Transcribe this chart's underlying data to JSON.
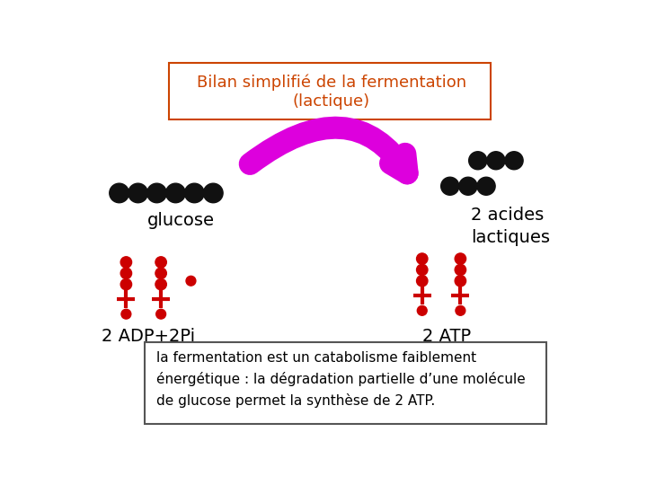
{
  "title_line1": "Bilan simplifié de la fermentation",
  "title_line2": "(lactique)",
  "title_color": "#cc4400",
  "title_box_edge": "#cc4400",
  "background_color": "#ffffff",
  "label_glucose": "glucose",
  "label_acides": "2 acides\nlactiques",
  "label_adp": "2 ADP+2Pi",
  "label_atp": "2 ATP",
  "footnote": "la fermentation est un catabolisme faiblement\nénergétique : la dégradation partielle d’une molécule\nde glucose permet la synthèse de 2 ATP.",
  "black_dot_color": "#111111",
  "red_dot_color": "#cc0000",
  "arrow_color": "#dd00dd",
  "title_fontsize": 13,
  "label_fontsize": 14,
  "footnote_fontsize": 11
}
